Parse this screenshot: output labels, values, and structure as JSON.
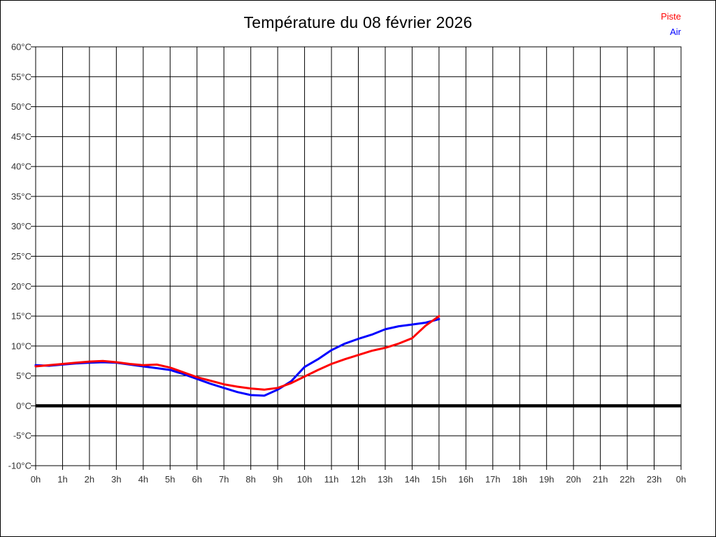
{
  "title": "Température du 08 février 2026",
  "legend": {
    "piste_label": "Piste",
    "air_label": "Air"
  },
  "colors": {
    "piste": "#ff0000",
    "air": "#0000ff",
    "grid": "#000000",
    "zero_line": "#000000",
    "axis_text": "#333333",
    "background": "#ffffff"
  },
  "chart_data": {
    "type": "line",
    "title": "Température du 08 février 2026",
    "xlabel": "",
    "ylabel": "",
    "xlim": [
      0,
      24
    ],
    "ylim": [
      -10,
      60
    ],
    "y_step_deg": 5,
    "x_step_hours": 1,
    "grid": true,
    "zero_line_bold": true,
    "legend_position": "top-right",
    "x_tick_labels": [
      "0h",
      "1h",
      "2h",
      "3h",
      "4h",
      "5h",
      "6h",
      "7h",
      "8h",
      "9h",
      "10h",
      "11h",
      "12h",
      "13h",
      "14h",
      "15h",
      "16h",
      "17h",
      "18h",
      "19h",
      "20h",
      "21h",
      "22h",
      "23h",
      "0h"
    ],
    "y_tick_labels": [
      "60°C",
      "55°C",
      "50°C",
      "45°C",
      "40°C",
      "35°C",
      "30°C",
      "25°C",
      "20°C",
      "15°C",
      "10°C",
      "5°C",
      "0°C",
      "-5°C",
      "-10°C"
    ],
    "x": [
      0,
      0.5,
      1,
      1.5,
      2,
      2.5,
      3,
      3.5,
      4,
      4.5,
      5,
      5.5,
      6,
      6.5,
      7,
      7.5,
      8,
      8.5,
      9,
      9.5,
      10,
      10.5,
      11,
      11.5,
      12,
      12.5,
      13,
      13.5,
      14,
      14.5,
      15
    ],
    "series": [
      {
        "name": "Piste",
        "color": "#ff0000",
        "values": [
          6.6,
          6.8,
          7.0,
          7.2,
          7.4,
          7.5,
          7.3,
          7.0,
          6.8,
          6.9,
          6.4,
          5.6,
          4.8,
          4.2,
          3.6,
          3.2,
          2.9,
          2.7,
          3.0,
          3.8,
          4.9,
          6.0,
          7.0,
          7.8,
          8.5,
          9.2,
          9.7,
          10.4,
          11.3,
          13.4,
          15.0
        ]
      },
      {
        "name": "Air",
        "color": "#0000ff",
        "values": [
          6.8,
          6.7,
          6.9,
          7.1,
          7.2,
          7.3,
          7.2,
          6.9,
          6.6,
          6.3,
          6.0,
          5.3,
          4.5,
          3.7,
          3.0,
          2.3,
          1.8,
          1.7,
          2.7,
          4.1,
          6.5,
          7.8,
          9.3,
          10.4,
          11.2,
          11.9,
          12.8,
          13.3,
          13.6,
          13.9,
          14.5
        ]
      }
    ]
  }
}
